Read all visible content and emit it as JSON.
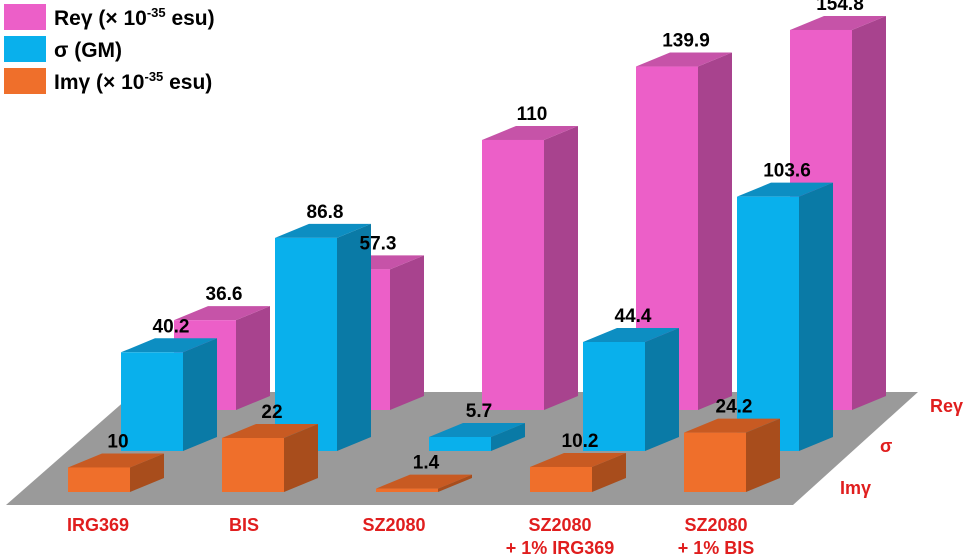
{
  "chart_data": {
    "type": "bar",
    "style": "3d-grouped",
    "categories": [
      [
        "IRG369"
      ],
      [
        "BIS"
      ],
      [
        "SZ2080"
      ],
      [
        "SZ2080",
        "+ 1% IRG369"
      ],
      [
        "SZ2080",
        "+ 1% BIS"
      ]
    ],
    "rows": [
      "Imγ",
      "σ",
      "Reγ"
    ],
    "series": [
      {
        "name": "Reγ (× 10",
        "name_sup": "-35",
        "name_suffix": " esu)",
        "row": "Reγ",
        "color": "#ec5fc8",
        "side_color": "#a8438e",
        "top_color": "#c653a8",
        "values": [
          36.6,
          57.3,
          110,
          139.9,
          154.8
        ],
        "labels": [
          "36.6",
          "57.3",
          "110",
          "139.9",
          "154.8"
        ]
      },
      {
        "name": "σ (GM)",
        "row": "σ",
        "color": "#09b0ec",
        "side_color": "#0a7aa6",
        "top_color": "#0d8ec2",
        "values": [
          40.2,
          86.8,
          5.7,
          44.4,
          103.6
        ],
        "labels": [
          "40.2",
          "86.8",
          "5.7",
          "44.4",
          "103.6"
        ]
      },
      {
        "name": "Imγ (× 10",
        "name_sup": "-35",
        "name_suffix": " esu)",
        "row": "Imγ",
        "color": "#ef6f2b",
        "side_color": "#a84d1c",
        "top_color": "#c85a22",
        "values": [
          10,
          22,
          1.4,
          10.2,
          24.2
        ],
        "labels": [
          "10",
          "22",
          "1.4",
          "10.2",
          "24.2"
        ]
      }
    ],
    "floor_color": "#9a9a9a",
    "legend_position": "top-left"
  }
}
